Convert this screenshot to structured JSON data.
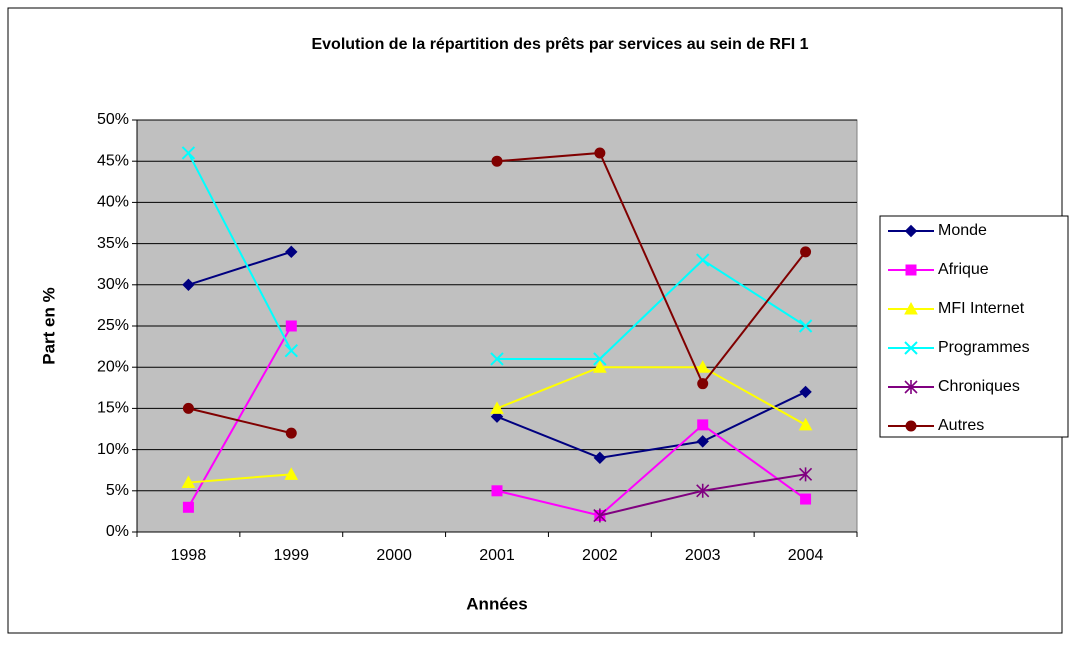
{
  "chart_data": {
    "type": "line",
    "title": "Evolution de la répartition des prêts par services au sein de RFI 1",
    "xlabel": "Années",
    "ylabel": "Part en %",
    "categories": [
      "1998",
      "1999",
      "2000",
      "2001",
      "2002",
      "2003",
      "2004"
    ],
    "series": [
      {
        "name": "Monde",
        "color": "#000080",
        "marker": "diamond",
        "values": [
          30,
          34,
          null,
          14,
          9,
          11,
          17
        ]
      },
      {
        "name": "Afrique",
        "color": "#ff00ff",
        "marker": "square",
        "values": [
          3,
          25,
          null,
          5,
          2,
          13,
          4
        ]
      },
      {
        "name": "MFI Internet",
        "color": "#ffff00",
        "marker": "triangle",
        "values": [
          6,
          7,
          null,
          15,
          20,
          20,
          13
        ]
      },
      {
        "name": "Programmes",
        "color": "#00ffff",
        "marker": "x",
        "values": [
          46,
          22,
          null,
          21,
          21,
          33,
          25
        ]
      },
      {
        "name": "Chroniques",
        "color": "#800080",
        "marker": "star",
        "values": [
          null,
          null,
          null,
          null,
          2,
          5,
          7
        ]
      },
      {
        "name": "Autres",
        "color": "#800000",
        "marker": "circle",
        "values": [
          15,
          12,
          null,
          45,
          46,
          18,
          34
        ]
      }
    ],
    "ylim": [
      0,
      50
    ],
    "yticks": [
      {
        "value": 0,
        "label": "0%"
      },
      {
        "value": 5,
        "label": "5%"
      },
      {
        "value": 10,
        "label": "10%"
      },
      {
        "value": 15,
        "label": "15%"
      },
      {
        "value": 20,
        "label": "20%"
      },
      {
        "value": 25,
        "label": "25%"
      },
      {
        "value": 30,
        "label": "30%"
      },
      {
        "value": 35,
        "label": "35%"
      },
      {
        "value": 40,
        "label": "40%"
      },
      {
        "value": 45,
        "label": "45%"
      },
      {
        "value": 50,
        "label": "50%"
      }
    ],
    "grid": true,
    "legend": "right"
  }
}
